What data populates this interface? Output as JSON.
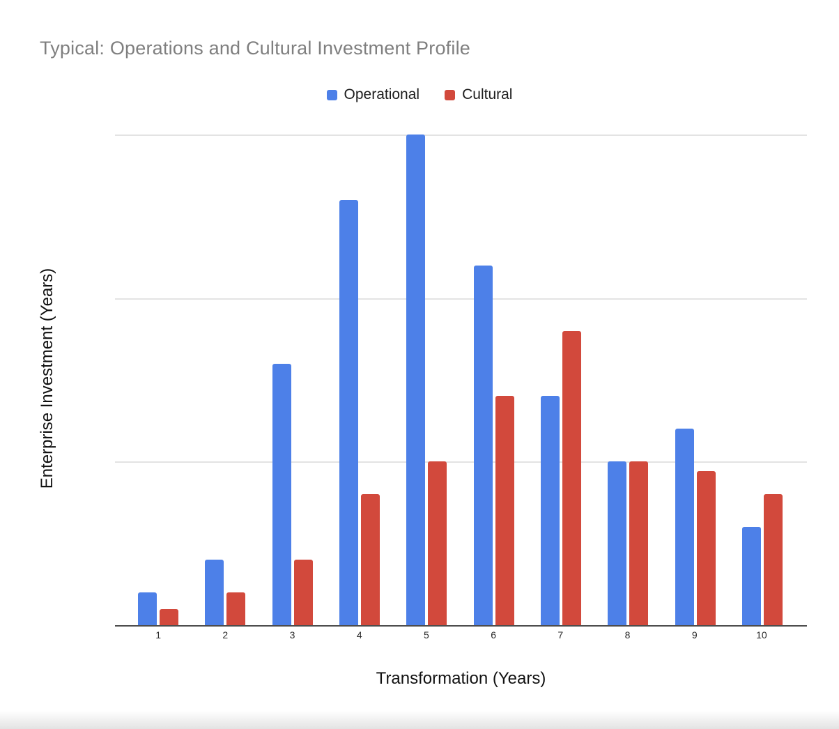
{
  "chart_data": {
    "type": "bar",
    "title": "Typical: Operations and Cultural Investment Profile",
    "xlabel": "Transformation (Years)",
    "ylabel": "Enterprise Investment (Years)",
    "categories": [
      "1",
      "2",
      "3",
      "4",
      "5",
      "6",
      "7",
      "8",
      "9",
      "10"
    ],
    "series": [
      {
        "name": "Operational",
        "color": "#4d80e8",
        "values": [
          1,
          2,
          8,
          13,
          15,
          11,
          7,
          5,
          6,
          3
        ]
      },
      {
        "name": "Cultural",
        "color": "#d2493c",
        "values": [
          0.5,
          1,
          2,
          4,
          5,
          7,
          9,
          5,
          4.7,
          4
        ]
      }
    ],
    "ylim": [
      0,
      15
    ],
    "gridline_values": [
      5,
      10,
      15
    ],
    "y_tick_labels_visible": false,
    "grid": true,
    "legend_position": "top-center",
    "colors": {
      "title_text": "#7f7f7f",
      "axis_title_text": "#111111",
      "tick_label_text": "#2a2a2a",
      "gridline": "#e3e3e3",
      "axis_line": "#4d4d4d",
      "background": "#ffffff"
    }
  }
}
